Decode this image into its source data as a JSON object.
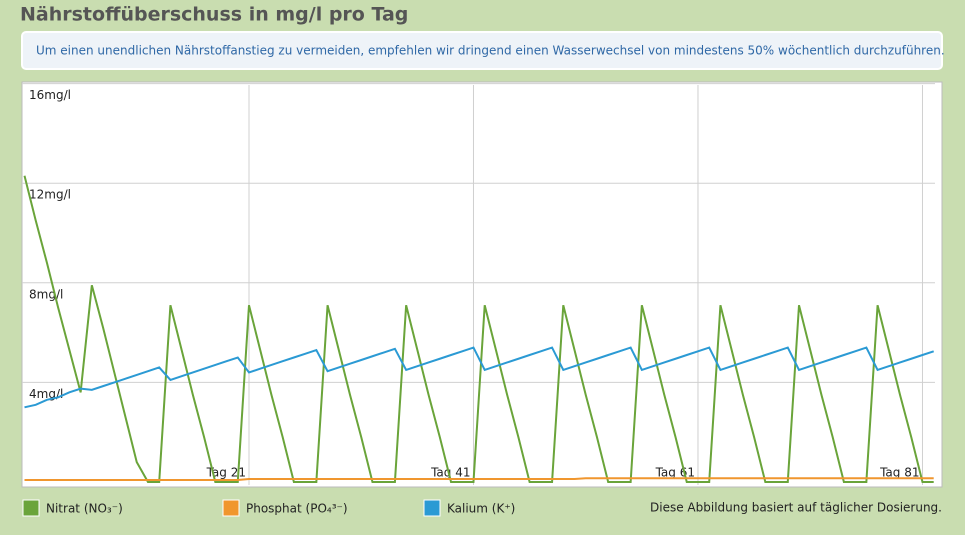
{
  "chart_data": {
    "type": "line",
    "title": "Nährstoffüberschuss in mg/l pro Tag",
    "subtitle": "Um einen unendlichen Nährstoffanstieg zu vermeiden, empfehlen wir dringend einen Wasserwechsel von mindestens 50% wöchentlich durchzuführen.",
    "note": "Diese Abbildung basiert auf täglicher Dosierung.",
    "x": [
      1,
      2,
      3,
      4,
      5,
      6,
      7,
      8,
      9,
      10,
      11,
      12,
      13,
      14,
      15,
      16,
      17,
      18,
      19,
      20,
      21,
      22,
      23,
      24,
      25,
      26,
      27,
      28,
      29,
      30,
      31,
      32,
      33,
      34,
      35,
      36,
      37,
      38,
      39,
      40,
      41,
      42,
      43,
      44,
      45,
      46,
      47,
      48,
      49,
      50,
      51,
      52,
      53,
      54,
      55,
      56,
      57,
      58,
      59,
      60,
      61,
      62,
      63,
      64,
      65,
      66,
      67,
      68,
      69,
      70,
      71,
      72,
      73,
      74,
      75,
      76,
      77,
      78,
      79,
      80,
      81,
      82
    ],
    "xlim": [
      1,
      82
    ],
    "xticks": [
      {
        "value": 21,
        "label": "Tag 21"
      },
      {
        "value": 41,
        "label": "Tag 41"
      },
      {
        "value": 61,
        "label": "Tag 61"
      },
      {
        "value": 81,
        "label": "Tag 81"
      }
    ],
    "ylim": [
      0,
      16
    ],
    "yticks": [
      {
        "value": 4,
        "label": "4mg/l"
      },
      {
        "value": 8,
        "label": "8mg/l"
      },
      {
        "value": 12,
        "label": "12mg/l"
      },
      {
        "value": 16,
        "label": "16mg/l"
      }
    ],
    "grid": true,
    "series": [
      {
        "name": "Nitrat (NO₃⁻)",
        "color": "#6aa43a",
        "values": [
          12.3,
          10.5,
          8.8,
          7.0,
          5.3,
          3.6,
          7.9,
          6.2,
          4.4,
          2.6,
          0.8,
          0,
          0,
          7.1,
          5.3,
          3.5,
          1.8,
          0,
          0,
          0,
          7.1,
          5.3,
          3.5,
          1.8,
          0,
          0,
          0,
          7.1,
          5.3,
          3.5,
          1.8,
          0,
          0,
          0,
          7.1,
          5.3,
          3.5,
          1.8,
          0,
          0,
          0,
          7.1,
          5.3,
          3.5,
          1.8,
          0,
          0,
          0,
          7.1,
          5.3,
          3.5,
          1.8,
          0,
          0,
          0,
          7.1,
          5.3,
          3.5,
          1.8,
          0,
          0,
          0,
          7.1,
          5.3,
          3.5,
          1.8,
          0,
          0,
          0,
          7.1,
          5.3,
          3.5,
          1.8,
          0,
          0,
          0,
          7.1,
          5.3,
          3.5,
          1.8,
          0,
          0
        ]
      },
      {
        "name": "Phosphat (PO₄³⁻)",
        "color": "#f0962e",
        "values": [
          0.08,
          0.08,
          0.08,
          0.08,
          0.08,
          0.08,
          0.08,
          0.08,
          0.08,
          0.08,
          0.08,
          0.08,
          0.08,
          0.08,
          0.08,
          0.08,
          0.08,
          0.08,
          0.08,
          0.08,
          0.12,
          0.12,
          0.12,
          0.12,
          0.12,
          0.12,
          0.12,
          0.12,
          0.12,
          0.12,
          0.12,
          0.12,
          0.12,
          0.12,
          0.12,
          0.12,
          0.12,
          0.12,
          0.12,
          0.12,
          0.12,
          0.12,
          0.12,
          0.12,
          0.12,
          0.12,
          0.12,
          0.12,
          0.12,
          0.12,
          0.15,
          0.15,
          0.15,
          0.15,
          0.15,
          0.15,
          0.15,
          0.15,
          0.15,
          0.15,
          0.15,
          0.15,
          0.15,
          0.15,
          0.15,
          0.15,
          0.15,
          0.15,
          0.15,
          0.15,
          0.15,
          0.15,
          0.15,
          0.15,
          0.15,
          0.15,
          0.15,
          0.15,
          0.15,
          0.15,
          0.15,
          0.15
        ]
      },
      {
        "name": "Kalium (K⁺)",
        "color": "#2b9ad4",
        "values": [
          3.0,
          3.1,
          3.3,
          3.4,
          3.6,
          3.75,
          3.7,
          3.85,
          4.0,
          4.15,
          4.3,
          4.45,
          4.6,
          4.1,
          4.25,
          4.4,
          4.55,
          4.7,
          4.85,
          5.0,
          4.4,
          4.55,
          4.7,
          4.85,
          5.0,
          5.15,
          5.3,
          4.45,
          4.6,
          4.75,
          4.9,
          5.05,
          5.2,
          5.35,
          4.5,
          4.65,
          4.8,
          4.95,
          5.1,
          5.25,
          5.4,
          4.5,
          4.65,
          4.8,
          4.95,
          5.1,
          5.25,
          5.4,
          4.5,
          4.65,
          4.8,
          4.95,
          5.1,
          5.25,
          5.4,
          4.5,
          4.65,
          4.8,
          4.95,
          5.1,
          5.25,
          5.4,
          4.5,
          4.65,
          4.8,
          4.95,
          5.1,
          5.25,
          5.4,
          4.5,
          4.65,
          4.8,
          4.95,
          5.1,
          5.25,
          5.4,
          4.5,
          4.65,
          4.8,
          4.95,
          5.1,
          5.25
        ]
      }
    ]
  }
}
